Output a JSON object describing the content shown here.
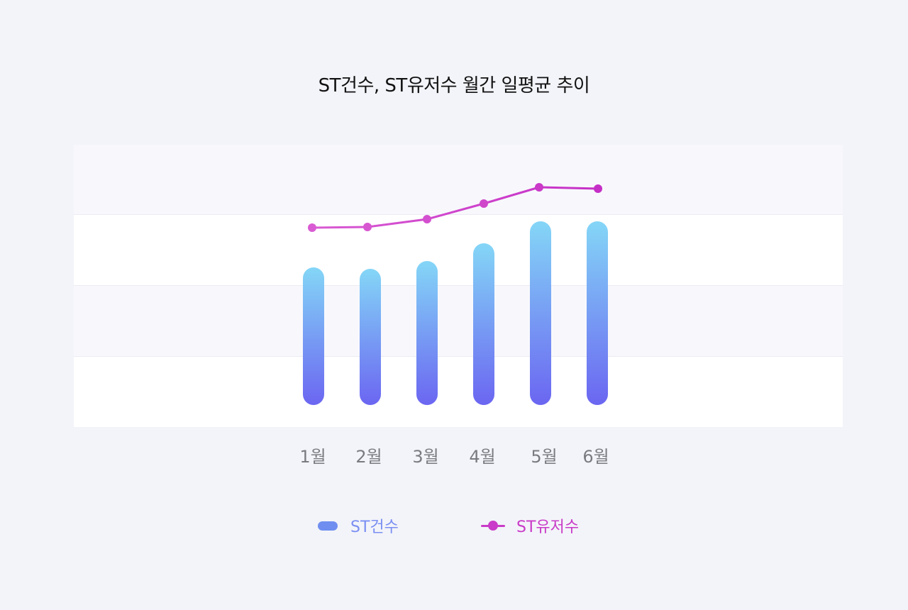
{
  "colors": {
    "page_bg": "#f3f4f9",
    "band_light": "#f8f8fc",
    "band_white": "#ffffff",
    "grid_line": "#ebecf3",
    "bar_top": "#84d6f7",
    "bar_bottom": "#6b66f1",
    "line": "#cf3fcc",
    "line_end": "#c52fc6",
    "legend_bar": "#6f8ef0",
    "legend_bar_text": "#7b8ff2",
    "legend_line_text": "#c93bc8"
  },
  "chart_data": {
    "type": "bar",
    "title": "ST건수, ST유저수 월간 일평균 추이",
    "categories": [
      "1월",
      "2월",
      "3월",
      "4월",
      "5월",
      "6월"
    ],
    "series": [
      {
        "name": "ST건수",
        "type": "bar",
        "values": [
          225,
          223,
          234,
          259,
          290,
          290
        ]
      },
      {
        "name": "ST유저수",
        "type": "line",
        "values": [
          281,
          282,
          293,
          315,
          338,
          336
        ]
      }
    ],
    "ylim": [
      0,
      398
    ],
    "grid": true,
    "legend_position": "bottom"
  }
}
